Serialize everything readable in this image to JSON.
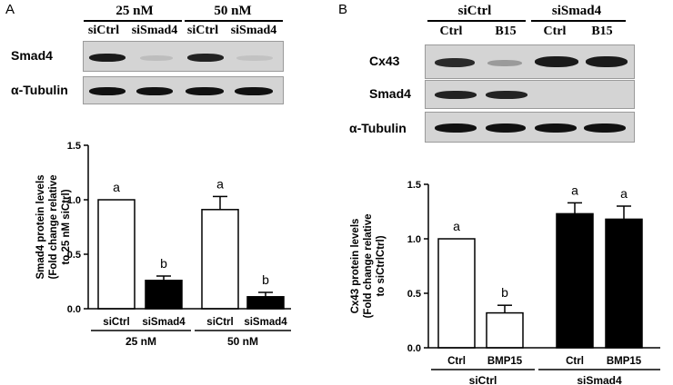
{
  "panelA": {
    "letter": "A",
    "blot": {
      "groups": [
        "25 nM",
        "50 nM"
      ],
      "lanes": [
        "siCtrl",
        "siSmad4",
        "siCtrl",
        "siSmad4"
      ],
      "rows": [
        "Smad4",
        "α-Tubulin"
      ]
    }
  },
  "panelB": {
    "letter": "B",
    "blot": {
      "groups": [
        "siCtrl",
        "siSmad4"
      ],
      "lanes": [
        "Ctrl",
        "B15",
        "Ctrl",
        "B15"
      ],
      "rows": [
        "Cx43",
        "Smad4",
        "α-Tubulin"
      ]
    }
  },
  "chart_data": [
    {
      "type": "bar",
      "ylabel": "Smad4 protein levels (Fold change relative to 25 nM siCtrl)",
      "categories": [
        "siCtrl",
        "siSmad4",
        "siCtrl",
        "siSmad4"
      ],
      "groups": [
        "25 nM",
        "50 nM"
      ],
      "values": [
        1.0,
        0.26,
        0.91,
        0.11
      ],
      "errors": [
        0.0,
        0.04,
        0.12,
        0.04
      ],
      "significance": [
        "a",
        "b",
        "a",
        "b"
      ],
      "bar_colors": [
        "#ffffff",
        "#000000",
        "#ffffff",
        "#000000"
      ],
      "ylim": [
        0,
        1.5
      ],
      "yticks": [
        "0.0",
        "0.5",
        "1.0",
        "1.5"
      ]
    },
    {
      "type": "bar",
      "ylabel": "Cx43 protein levels (Fold change relative to siCtrlCtrl)",
      "categories": [
        "Ctrl",
        "BMP15",
        "Ctrl",
        "BMP15"
      ],
      "groups": [
        "siCtrl",
        "siSmad4"
      ],
      "values": [
        1.0,
        0.32,
        1.23,
        1.18
      ],
      "errors": [
        0.0,
        0.07,
        0.1,
        0.12
      ],
      "significance": [
        "a",
        "b",
        "a",
        "a"
      ],
      "bar_colors": [
        "#ffffff",
        "#ffffff",
        "#000000",
        "#000000"
      ],
      "ylim": [
        0,
        1.5
      ],
      "yticks": [
        "0.0",
        "0.5",
        "1.0",
        "1.5"
      ]
    }
  ]
}
